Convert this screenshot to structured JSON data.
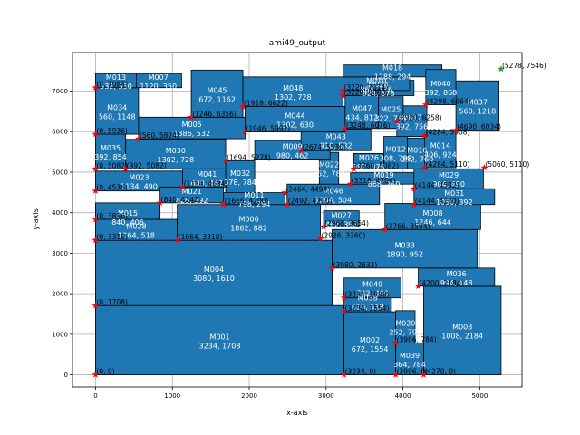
{
  "chart_data": {
    "type": "floorplan",
    "title": "ami49_output",
    "xlabel": "x-axis",
    "ylabel": "y-axis",
    "xlim": [
      -300,
      5550
    ],
    "ylim": [
      -300,
      7950
    ],
    "xticks": [
      0,
      1000,
      2000,
      3000,
      4000,
      5000
    ],
    "yticks": [
      0,
      1000,
      2000,
      3000,
      4000,
      5000,
      6000,
      7000
    ],
    "grid": true,
    "colors": {
      "block": "#1f77b4",
      "edge": "#000000",
      "corner": "#ff0000",
      "target": "#2ca02c"
    },
    "blocks": [
      {
        "name": "M001",
        "w": 3234,
        "h": 1708,
        "x": 0,
        "y": 0
      },
      {
        "name": "M002",
        "w": 672,
        "h": 1554,
        "x": 3234,
        "y": 0
      },
      {
        "name": "M039",
        "w": 364,
        "h": 784,
        "x": 3906,
        "y": 0
      },
      {
        "name": "M020",
        "w": 252,
        "h": 798,
        "x": 3906,
        "y": 784
      },
      {
        "name": "M003",
        "w": 1008,
        "h": 2184,
        "x": 4270,
        "y": 0
      },
      {
        "name": "M004",
        "w": 3080,
        "h": 1610,
        "x": 0,
        "y": 1708
      },
      {
        "name": "M038",
        "w": 616,
        "h": 518,
        "x": 3234,
        "y": 1554
      },
      {
        "name": "M049",
        "w": 742,
        "h": 490,
        "x": 3234,
        "y": 1898
      },
      {
        "name": "M036",
        "w": 994,
        "h": 448,
        "x": 4200,
        "y": 2184
      },
      {
        "name": "M028",
        "w": 1064,
        "h": 518,
        "x": 0,
        "y": 3318
      },
      {
        "name": "M006",
        "w": 1862,
        "h": 882,
        "x": 1064,
        "y": 3318
      },
      {
        "name": "M033",
        "w": 1890,
        "h": 952,
        "x": 3080,
        "y": 2632
      },
      {
        "name": "M015",
        "w": 840,
        "h": 406,
        "x": 0,
        "y": 3836
      },
      {
        "name": "M027",
        "w": 462,
        "h": 392,
        "x": 2968,
        "y": 3654
      },
      {
        "name": "M008",
        "w": 1246,
        "h": 644,
        "x": 3766,
        "y": 3584
      },
      {
        "name": "M023",
        "w": 1134,
        "h": 490,
        "x": 0,
        "y": 4536
      },
      {
        "name": "M021",
        "w": 826,
        "h": 392,
        "x": 840,
        "y": 4242
      },
      {
        "name": "M041",
        "w": 630,
        "h": 462,
        "x": 1134,
        "y": 4634
      },
      {
        "name": "M011",
        "w": 798,
        "h": 294,
        "x": 1666,
        "y": 4200
      },
      {
        "name": "M032",
        "w": 378,
        "h": 784,
        "x": 1694,
        "y": 4494
      },
      {
        "name": "M046",
        "w": 1204,
        "h": 504,
        "x": 2492,
        "y": 4200
      },
      {
        "name": "M022",
        "w": 252,
        "h": 784,
        "x": 2912,
        "y": 4704
      },
      {
        "name": "M019",
        "w": 868,
        "h": 280,
        "x": 3318,
        "y": 4704
      },
      {
        "name": "M031",
        "w": 1050,
        "h": 392,
        "x": 4144,
        "y": 4200
      },
      {
        "name": "M029",
        "w": 904,
        "h": 490,
        "x": 4144,
        "y": 4592
      },
      {
        "name": "M035",
        "w": 392,
        "h": 854,
        "x": 0,
        "y": 5082
      },
      {
        "name": "M030",
        "w": 1302,
        "h": 728,
        "x": 392,
        "y": 5082
      },
      {
        "name": "M009",
        "w": 980,
        "h": 462,
        "x": 2072,
        "y": 5320
      },
      {
        "name": "M043",
        "w": 910,
        "h": 532,
        "x": 2674,
        "y": 5530
      },
      {
        "name": "M026",
        "w": 392,
        "h": 378,
        "x": 3360,
        "y": 5082
      },
      {
        "name": "M012",
        "w": 308,
        "h": 798,
        "x": 3752,
        "y": 5082
      },
      {
        "name": "M016",
        "w": 252,
        "h": 760,
        "x": 4060,
        "y": 5082
      },
      {
        "name": "M014",
        "w": 406,
        "h": 924,
        "x": 4284,
        "y": 5110
      },
      {
        "name": "M034",
        "w": 560,
        "h": 1148,
        "x": 0,
        "y": 5936
      },
      {
        "name": "M005",
        "w": 1386,
        "s": "",
        "h": 532,
        "x": 560,
        "y": 5824
      },
      {
        "name": "M044",
        "w": 1302,
        "h": 630,
        "x": 1946,
        "y": 5992
      },
      {
        "name": "M047",
        "w": 434,
        "h": 812,
        "x": 3248,
        "y": 6076
      },
      {
        "name": "M017",
        "w": 392,
        "h": 756,
        "x": 3920,
        "y": 5880
      },
      {
        "name": "M025",
        "w": 322,
        "h": 784,
        "x": 3682,
        "y": 6076
      },
      {
        "name": "M037",
        "w": 560,
        "h": 1218,
        "x": 4690,
        "y": 6034
      },
      {
        "name": "M045",
        "w": 672,
        "h": 1162,
        "x": 1246,
        "y": 6356
      },
      {
        "name": "M048",
        "w": 1302,
        "h": 728,
        "x": 1918,
        "y": 6622
      },
      {
        "name": "M024",
        "w": 924,
        "h": 378,
        "x": 3220,
        "y": 6888
      },
      {
        "name": "M010",
        "w": 868,
        "h": 336,
        "x": 3220,
        "y": 7014
      },
      {
        "name": "M018",
        "w": 1288,
        "h": 294,
        "x": 3220,
        "y": 7350
      },
      {
        "name": "M040",
        "w": 392,
        "h": 868,
        "x": 4298,
        "y": 6664
      },
      {
        "name": "M007",
        "w": 1120,
        "h": 350,
        "x": 0,
        "y": 7084
      },
      {
        "name": "M013",
        "w": 532,
        "h": 350,
        "x": 0,
        "y": 7084
      }
    ],
    "labels": [
      {
        "text": "M001",
        "sub": "3234, 1708",
        "x": 1617,
        "y": 854
      },
      {
        "text": "M002",
        "sub": "672, 1554",
        "x": 3570,
        "y": 777
      },
      {
        "text": "M039",
        "sub": "364, 784",
        "x": 4088,
        "y": 392
      },
      {
        "text": "M020",
        "sub": "252, 798",
        "x": 4032,
        "y": 1183
      },
      {
        "text": "M003",
        "sub": "1008, 2184",
        "x": 4774,
        "y": 1092
      },
      {
        "text": "M004",
        "sub": "3080, 1610",
        "x": 1540,
        "y": 2513
      },
      {
        "text": "M038",
        "sub": "616, 518",
        "x": 3542,
        "y": 1813
      },
      {
        "text": "M049",
        "sub": "742, 490",
        "x": 3605,
        "y": 2143
      },
      {
        "text": "M036",
        "sub": "994, 448",
        "x": 4697,
        "y": 2408
      },
      {
        "text": "M028",
        "sub": "1064, 518",
        "x": 532,
        "y": 3577
      },
      {
        "text": "M006",
        "sub": "1862, 882",
        "x": 1995,
        "y": 3759
      },
      {
        "text": "M033",
        "sub": "1890, 952",
        "x": 4025,
        "y": 3108
      },
      {
        "text": "M015",
        "sub": "840, 406",
        "x": 420,
        "y": 3900
      },
      {
        "text": "M027",
        "sub": "462, 392",
        "x": 3199,
        "y": 3850
      },
      {
        "text": "M008",
        "sub": "1246, 644",
        "x": 4389,
        "y": 3906
      },
      {
        "text": "M023",
        "sub": "1134, 490",
        "x": 567,
        "y": 4781
      },
      {
        "text": "M021",
        "sub": "826, 392",
        "x": 1253,
        "y": 4438
      },
      {
        "text": "M041",
        "sub": "630, 462",
        "x": 1449,
        "y": 4865
      },
      {
        "text": "M011",
        "sub": "798, 294",
        "x": 2065,
        "y": 4347
      },
      {
        "text": "M032",
        "sub": "378, 784",
        "x": 1883,
        "y": 4886
      },
      {
        "text": "M046",
        "sub": "1204, 504",
        "x": 3094,
        "y": 4452
      },
      {
        "text": "M022",
        "sub": "252, 784",
        "x": 3038,
        "y": 5096
      },
      {
        "text": "M019",
        "sub": "868, 280",
        "x": 3752,
        "y": 4844
      },
      {
        "text": "M031",
        "sub": "1050, 392",
        "x": 4669,
        "y": 4396
      },
      {
        "text": "M029",
        "sub": "904, 490",
        "x": 4596,
        "y": 4837
      },
      {
        "text": "M035",
        "sub": "392, 854",
        "x": 196,
        "y": 5509
      },
      {
        "text": "M030",
        "sub": "1302, 728",
        "x": 1043,
        "y": 5446
      },
      {
        "text": "M009",
        "sub": "980, 462",
        "x": 2562,
        "y": 5551
      },
      {
        "text": "M043",
        "sub": "910, 532",
        "x": 3129,
        "y": 5796
      },
      {
        "text": "M026",
        "sub": "392, 378",
        "x": 3556,
        "y": 5271
      },
      {
        "text": "M012",
        "sub": "308, 798",
        "x": 3906,
        "y": 5481
      },
      {
        "text": "M016",
        "sub": "252, 760",
        "x": 4186,
        "y": 5462
      },
      {
        "text": "M014",
        "sub": "406, 924",
        "x": 4487,
        "y": 5572
      },
      {
        "text": "M034",
        "sub": "560, 1148",
        "x": 280,
        "y": 6510
      },
      {
        "text": "M005",
        "sub": "1386, 532",
        "x": 1253,
        "y": 6090
      },
      {
        "text": "M044",
        "sub": "1302, 630",
        "x": 2597,
        "y": 6307
      },
      {
        "text": "M047",
        "sub": "434, 812",
        "x": 3465,
        "y": 6482
      },
      {
        "text": "M017",
        "sub": "392, 756",
        "x": 4116,
        "y": 6258
      },
      {
        "text": "M025",
        "sub": "322, 784",
        "x": 3843,
        "y": 6468
      },
      {
        "text": "M037",
        "sub": "560, 1218",
        "x": 4970,
        "y": 6643
      },
      {
        "text": "M045",
        "sub": "672, 1162",
        "x": 1582,
        "y": 6937
      },
      {
        "text": "M048",
        "sub": "1302, 728",
        "x": 2569,
        "y": 6986
      },
      {
        "text": "M024",
        "sub": "924, 378",
        "x": 3682,
        "y": 7077
      },
      {
        "text": "M010",
        "sub": "868, 336",
        "x": 3654,
        "y": 7182
      },
      {
        "text": "M018",
        "sub": "1288, 294",
        "x": 3864,
        "y": 7497
      },
      {
        "text": "M040",
        "sub": "392, 868",
        "x": 4494,
        "y": 7098
      },
      {
        "text": "M007",
        "sub": "1120, 350",
        "x": 817,
        "y": 7259
      },
      {
        "text": "M013",
        "sub": "532, 350",
        "x": 266,
        "y": 7259
      }
    ],
    "corners": [
      {
        "text": "(0, 0)",
        "x": 0,
        "y": 0
      },
      {
        "text": "(3234, 0)",
        "x": 3234,
        "y": 0
      },
      {
        "text": "(3906, 0)",
        "x": 3906,
        "y": 0
      },
      {
        "text": "(4270, 0)",
        "x": 4270,
        "y": 0
      },
      {
        "text": "(3906, 784)",
        "x": 3906,
        "y": 784
      },
      {
        "text": "(0, 1708)",
        "x": 0,
        "y": 1708
      },
      {
        "text": "(3234, 1554)",
        "x": 3234,
        "y": 1554
      },
      {
        "text": "(3234, 1898)",
        "x": 3234,
        "y": 1898
      },
      {
        "text": "(4200, 2184)",
        "x": 4200,
        "y": 2184
      },
      {
        "text": "(3080, 2632)",
        "x": 3080,
        "y": 2632
      },
      {
        "text": "(0, 3318)",
        "x": 0,
        "y": 3318
      },
      {
        "text": "(1064, 3318)",
        "x": 1064,
        "y": 3318
      },
      {
        "text": "(2926, 3360)",
        "x": 2926,
        "y": 3360
      },
      {
        "text": "(3766, 3584)",
        "x": 3766,
        "y": 3584
      },
      {
        "text": "(0, 3836)",
        "x": 0,
        "y": 3836
      },
      {
        "text": "(2968, 3654)",
        "x": 2968,
        "y": 3654
      },
      {
        "text": "(840, 4242)",
        "x": 840,
        "y": 4242
      },
      {
        "text": "(1666, 4200)",
        "x": 1666,
        "y": 4200
      },
      {
        "text": "(2492, 4200)",
        "x": 2492,
        "y": 4200
      },
      {
        "text": "(4144, 4200)",
        "x": 4144,
        "y": 4200
      },
      {
        "text": "(0, 4536)",
        "x": 0,
        "y": 4536
      },
      {
        "text": "(1134, 4634)",
        "x": 1134,
        "y": 4634
      },
      {
        "text": "(2464, 4494)",
        "x": 2464,
        "y": 4494
      },
      {
        "text": "(3318, 4704)",
        "x": 3318,
        "y": 4704
      },
      {
        "text": "(4144, 4592)",
        "x": 4144,
        "y": 4592
      },
      {
        "text": "(0, 5082)",
        "x": 0,
        "y": 5082
      },
      {
        "text": "(392, 5082)",
        "x": 392,
        "y": 5082
      },
      {
        "text": "(1694, 5278)",
        "x": 1694,
        "y": 5278
      },
      {
        "text": "(3360, 5082)",
        "x": 3360,
        "y": 5082
      },
      {
        "text": "(4284, 5110)",
        "x": 4284,
        "y": 5110
      },
      {
        "text": "(5060, 5110)",
        "x": 5060,
        "y": 5110
      },
      {
        "text": "(2674, 5530)",
        "x": 2674,
        "y": 5530
      },
      {
        "text": "(560, 5824)",
        "x": 560,
        "y": 5824
      },
      {
        "text": "(0, 5936)",
        "x": 0,
        "y": 5936
      },
      {
        "text": "(1946, 5992)",
        "x": 1946,
        "y": 5992
      },
      {
        "text": "(3248, 6076)",
        "x": 3248,
        "y": 6076
      },
      {
        "text": "(4284, 5908)",
        "x": 4284,
        "y": 5908
      },
      {
        "text": "(4690, 6034)",
        "x": 4690,
        "y": 6034
      },
      {
        "text": "(3920, 6258)",
        "x": 3920,
        "y": 6258
      },
      {
        "text": "(1246, 6356)",
        "x": 1246,
        "y": 6356
      },
      {
        "text": "(1918, 6622)",
        "x": 1918,
        "y": 6622
      },
      {
        "text": "(4298, 6664)",
        "x": 4298,
        "y": 6664
      },
      {
        "text": "(3220, 6888)",
        "x": 3220,
        "y": 6888
      },
      {
        "text": "(3220, 7014)",
        "x": 3220,
        "y": 7014
      },
      {
        "text": "(0, 7084)",
        "x": 0,
        "y": 7084
      },
      {
        "text": "(5278, 7546)",
        "x": 5278,
        "y": 7546,
        "target": true
      }
    ]
  }
}
